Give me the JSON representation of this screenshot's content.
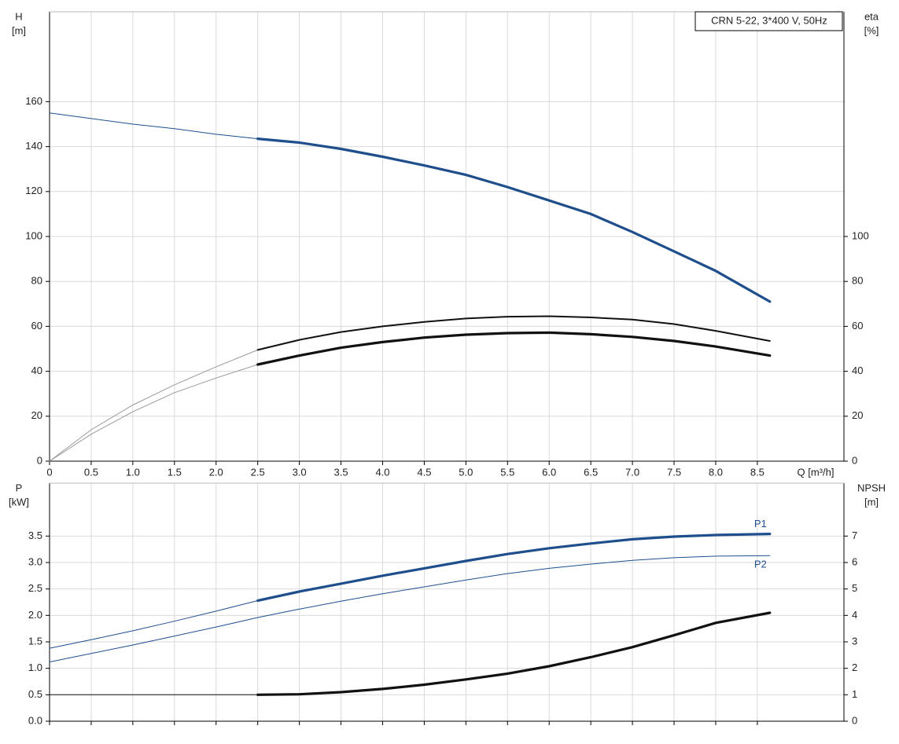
{
  "chart_data": [
    {
      "type": "line",
      "legend_box": "CRN 5-22, 3*400 V, 50Hz",
      "y_label": [
        "H",
        "[m]"
      ],
      "y2_label": [
        "eta",
        "[%]"
      ],
      "x_label": "Q [m³/h]",
      "xlim": [
        0,
        9.54
      ],
      "ylim": [
        0,
        200
      ],
      "y2lim": [
        0,
        200
      ],
      "grid": true,
      "xticks": [
        0,
        0.5,
        {
          "value": 1,
          "label": "1.0"
        },
        1.5,
        {
          "value": 2,
          "label": "2.0"
        },
        2.5,
        {
          "value": 3,
          "label": "3.0"
        },
        3.5,
        {
          "value": 4,
          "label": "4.0"
        },
        4.5,
        {
          "value": 5,
          "label": "5.0"
        },
        5.5,
        {
          "value": 6,
          "label": "6.0"
        },
        6.5,
        {
          "value": 7,
          "label": "7.0"
        },
        7.5,
        {
          "value": 8,
          "label": "8.0"
        },
        8.5
      ],
      "yticks": [
        0,
        20,
        40,
        60,
        80,
        100,
        120,
        140,
        160
      ],
      "y2ticks": [
        0,
        20,
        40,
        60,
        80,
        100
      ],
      "series": [
        {
          "color": "#1f4e8c",
          "style": "thin",
          "x": [
            0,
            0.5,
            1,
            1.5,
            2,
            2.5
          ],
          "values": [
            155,
            152.5,
            150,
            148,
            145.5,
            143.5
          ]
        },
        {
          "color": "#1f4e8c",
          "style": "thick",
          "x": [
            2.5,
            3,
            3.5,
            4,
            4.5,
            5,
            5.5,
            6,
            6.5,
            7,
            7.5,
            8,
            8.65
          ],
          "values": [
            143.5,
            141.8,
            139,
            135.5,
            131.6,
            127.4,
            122,
            116,
            110,
            102,
            93.4,
            84.7,
            71
          ]
        },
        {
          "color": "#999999",
          "style": "thin",
          "axis": "y2",
          "x": [
            0,
            0.5,
            1,
            1.5,
            2,
            2.5
          ],
          "values": [
            0,
            14,
            25,
            34,
            42,
            49.5
          ]
        },
        {
          "color": "#111111",
          "style": "medium",
          "axis": "y2",
          "x": [
            2.5,
            3,
            3.5,
            4,
            4.5,
            5,
            5.5,
            6,
            6.5,
            7,
            7.5,
            8,
            8.65
          ],
          "values": [
            49.5,
            54,
            57.5,
            60,
            62,
            63.5,
            64.3,
            64.5,
            64,
            63,
            61,
            58,
            53.5
          ]
        },
        {
          "color": "#999999",
          "style": "thin",
          "axis": "y2",
          "x": [
            0,
            0.5,
            1,
            1.5,
            2,
            2.5
          ],
          "values": [
            0,
            12,
            22,
            30.5,
            37,
            43
          ]
        },
        {
          "color": "#111111",
          "style": "thick",
          "axis": "y2",
          "x": [
            2.5,
            3,
            3.5,
            4,
            4.5,
            5,
            5.5,
            6,
            6.5,
            7,
            7.5,
            8,
            8.65
          ],
          "values": [
            43,
            47,
            50.5,
            53,
            55,
            56.3,
            57,
            57.2,
            56.5,
            55.3,
            53.5,
            51,
            47
          ]
        }
      ]
    },
    {
      "type": "line",
      "y_label": [
        "P",
        "[kW]"
      ],
      "y2_label": [
        "NPSH",
        "[m]"
      ],
      "xlim": [
        0,
        9.54
      ],
      "ylim": [
        0,
        4.5
      ],
      "y2lim": [
        0,
        9
      ],
      "grid": true,
      "xticks": [
        0,
        0.5,
        1,
        1.5,
        2,
        2.5,
        3,
        3.5,
        4,
        4.5,
        5,
        5.5,
        6,
        6.5,
        7,
        7.5,
        8,
        8.5
      ],
      "yticks": [
        {
          "value": 0,
          "label": "0.0"
        },
        0.5,
        {
          "value": 1,
          "label": "1.0"
        },
        1.5,
        {
          "value": 2,
          "label": "2.0"
        },
        2.5,
        {
          "value": 3,
          "label": "3.0"
        },
        3.5
      ],
      "y2ticks": [
        0,
        1,
        2,
        3,
        4,
        5,
        6,
        7
      ],
      "series": [
        {
          "color": "#1f4e8c",
          "style": "thin",
          "x": [
            0,
            0.5,
            1,
            1.5,
            2,
            2.5
          ],
          "values": [
            1.38,
            1.54,
            1.71,
            1.89,
            2.08,
            2.28
          ]
        },
        {
          "name": "P1",
          "color": "#1f4e8c",
          "style": "thick",
          "x": [
            2.5,
            3,
            3.5,
            4,
            4.5,
            5,
            5.5,
            6,
            6.5,
            7,
            7.5,
            8,
            8.65
          ],
          "values": [
            2.28,
            2.45,
            2.6,
            2.75,
            2.89,
            3.03,
            3.16,
            3.27,
            3.36,
            3.44,
            3.49,
            3.52,
            3.54
          ]
        },
        {
          "name": "P2",
          "color": "#1f4e8c",
          "style": "thin",
          "x": [
            0,
            0.5,
            1,
            1.5,
            2,
            2.5,
            3,
            3.5,
            4,
            4.5,
            5,
            5.5,
            6,
            6.5,
            7,
            7.5,
            8,
            8.65
          ],
          "values": [
            1.12,
            1.28,
            1.44,
            1.61,
            1.78,
            1.96,
            2.12,
            2.27,
            2.41,
            2.54,
            2.67,
            2.79,
            2.89,
            2.97,
            3.04,
            3.09,
            3.12,
            3.13
          ]
        },
        {
          "color": "#111111",
          "style": "thin",
          "axis": "y2",
          "x": [
            0,
            1,
            2,
            2.5
          ],
          "values": [
            1,
            1,
            1,
            1
          ]
        },
        {
          "color": "#111111",
          "style": "thick",
          "axis": "y2",
          "x": [
            2.5,
            3,
            3.5,
            4,
            4.5,
            5,
            5.5,
            6,
            6.5,
            7,
            7.5,
            8,
            8.65
          ],
          "values": [
            1,
            1.02,
            1.1,
            1.22,
            1.38,
            1.58,
            1.8,
            2.08,
            2.42,
            2.8,
            3.25,
            3.72,
            4.1
          ]
        }
      ]
    }
  ]
}
